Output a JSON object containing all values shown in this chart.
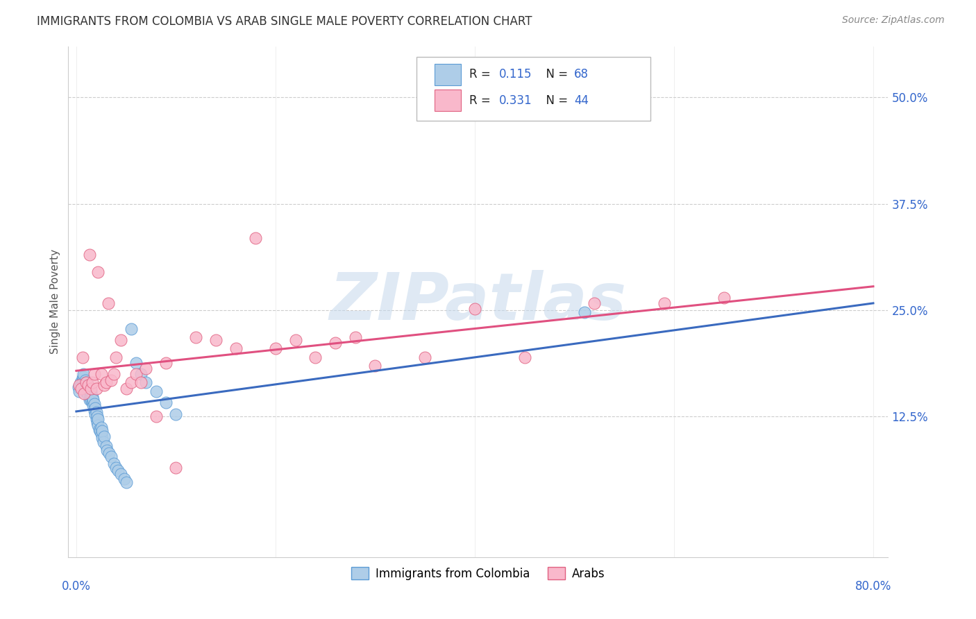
{
  "title": "IMMIGRANTS FROM COLOMBIA VS ARAB SINGLE MALE POVERTY CORRELATION CHART",
  "source": "Source: ZipAtlas.com",
  "ylabel": "Single Male Poverty",
  "colombia_R": 0.115,
  "colombia_N": 68,
  "arab_R": 0.331,
  "arab_N": 44,
  "colombia_color": "#aecde8",
  "colombia_edge_color": "#5b9bd5",
  "arab_color": "#f9b8cb",
  "arab_edge_color": "#e06080",
  "colombia_trend_color": "#3a6abf",
  "arab_trend_color": "#e05080",
  "tick_color": "#3366CC",
  "legend_text_color": "#222222",
  "watermark_color": "#c5d8ec",
  "xlim": [
    -0.008,
    0.815
  ],
  "ylim": [
    -0.04,
    0.56
  ],
  "yticks": [
    0.125,
    0.25,
    0.375,
    0.5
  ],
  "ytick_labels": [
    "12.5%",
    "25.0%",
    "37.5%",
    "50.0%"
  ],
  "colombia_x": [
    0.002,
    0.003,
    0.004,
    0.005,
    0.006,
    0.006,
    0.007,
    0.007,
    0.007,
    0.008,
    0.008,
    0.009,
    0.009,
    0.01,
    0.01,
    0.01,
    0.011,
    0.011,
    0.012,
    0.012,
    0.012,
    0.013,
    0.013,
    0.014,
    0.014,
    0.015,
    0.015,
    0.015,
    0.016,
    0.016,
    0.017,
    0.017,
    0.018,
    0.018,
    0.019,
    0.019,
    0.02,
    0.02,
    0.021,
    0.021,
    0.022,
    0.022,
    0.023,
    0.024,
    0.025,
    0.025,
    0.026,
    0.026,
    0.027,
    0.028,
    0.03,
    0.031,
    0.033,
    0.035,
    0.038,
    0.04,
    0.042,
    0.045,
    0.048,
    0.05,
    0.055,
    0.06,
    0.065,
    0.07,
    0.08,
    0.09,
    0.1,
    0.51
  ],
  "colombia_y": [
    0.16,
    0.155,
    0.165,
    0.162,
    0.165,
    0.17,
    0.168,
    0.172,
    0.175,
    0.158,
    0.162,
    0.16,
    0.168,
    0.155,
    0.162,
    0.165,
    0.155,
    0.16,
    0.15,
    0.158,
    0.162,
    0.145,
    0.155,
    0.148,
    0.158,
    0.145,
    0.15,
    0.155,
    0.142,
    0.148,
    0.138,
    0.145,
    0.132,
    0.14,
    0.128,
    0.135,
    0.122,
    0.13,
    0.118,
    0.125,
    0.115,
    0.122,
    0.11,
    0.108,
    0.105,
    0.112,
    0.1,
    0.108,
    0.095,
    0.102,
    0.09,
    0.085,
    0.082,
    0.078,
    0.07,
    0.065,
    0.062,
    0.058,
    0.052,
    0.048,
    0.228,
    0.188,
    0.175,
    0.165,
    0.155,
    0.142,
    0.128,
    0.248
  ],
  "arab_x": [
    0.003,
    0.005,
    0.006,
    0.008,
    0.01,
    0.012,
    0.013,
    0.015,
    0.016,
    0.018,
    0.02,
    0.022,
    0.025,
    0.028,
    0.03,
    0.032,
    0.035,
    0.038,
    0.04,
    0.045,
    0.05,
    0.055,
    0.06,
    0.065,
    0.07,
    0.08,
    0.09,
    0.1,
    0.12,
    0.14,
    0.16,
    0.18,
    0.2,
    0.22,
    0.24,
    0.26,
    0.28,
    0.3,
    0.35,
    0.4,
    0.45,
    0.52,
    0.59,
    0.65
  ],
  "arab_y": [
    0.162,
    0.158,
    0.195,
    0.152,
    0.165,
    0.162,
    0.315,
    0.158,
    0.165,
    0.175,
    0.158,
    0.295,
    0.175,
    0.162,
    0.165,
    0.258,
    0.168,
    0.175,
    0.195,
    0.215,
    0.158,
    0.165,
    0.175,
    0.165,
    0.182,
    0.125,
    0.188,
    0.065,
    0.218,
    0.215,
    0.205,
    0.335,
    0.205,
    0.215,
    0.195,
    0.212,
    0.218,
    0.185,
    0.195,
    0.252,
    0.195,
    0.258,
    0.258,
    0.265
  ]
}
